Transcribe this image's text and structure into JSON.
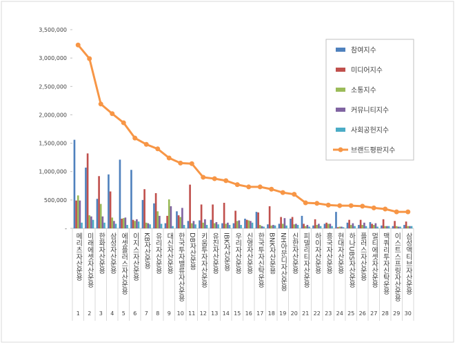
{
  "chart_data": {
    "type": "bar",
    "categories": [
      "메리츠자산운용",
      "미래에셋자산운용",
      "한화자산운용",
      "삼성자산운용",
      "에셋플러스자산운용",
      "이지스자산운용",
      "KB자산운용",
      "유리자산운용",
      "대신자산운용",
      "한국투자밸류자산운용",
      "DB자산운용",
      "키움투자자산운용",
      "유진자산운용",
      "IBK자산운용",
      "우리자산운용",
      "신영자산운용",
      "한국투자신탁운용",
      "BNK자산운용",
      "NH아문디자산운용",
      "신한자산운용",
      "피델리티자산운용",
      "하이자산운용",
      "흥국자산운용",
      "현대자산운용",
      "하나UBS자산운용",
      "플러스자산운용",
      "멀티에셋자산운용",
      "맥쿼리투자신탁운용",
      "이스트스프링자산운용",
      "삼성액티브자산운용"
    ],
    "ranks": [
      1,
      2,
      3,
      4,
      5,
      6,
      7,
      8,
      9,
      10,
      11,
      12,
      13,
      14,
      15,
      16,
      17,
      18,
      19,
      20,
      21,
      22,
      23,
      24,
      25,
      26,
      27,
      28,
      29,
      30
    ],
    "series": [
      {
        "name": "참여지수",
        "color": "#4f81bd",
        "values": [
          1560000,
          1070000,
          520000,
          950000,
          1210000,
          1030000,
          500000,
          440000,
          90000,
          300000,
          130000,
          140000,
          150000,
          90000,
          90000,
          170000,
          290000,
          70000,
          80000,
          170000,
          220000,
          50000,
          80000,
          290000,
          100000,
          60000,
          110000,
          50000,
          40000,
          60000
        ]
      },
      {
        "name": "미디어지수",
        "color": "#c0504d",
        "values": [
          490000,
          1320000,
          920000,
          650000,
          170000,
          150000,
          690000,
          620000,
          220000,
          230000,
          770000,
          420000,
          420000,
          450000,
          310000,
          150000,
          280000,
          390000,
          200000,
          200000,
          80000,
          160000,
          100000,
          20000,
          150000,
          150000,
          80000,
          160000,
          130000,
          120000
        ]
      },
      {
        "name": "소통지수",
        "color": "#9bbb59",
        "values": [
          580000,
          230000,
          430000,
          190000,
          180000,
          130000,
          100000,
          300000,
          510000,
          200000,
          90000,
          100000,
          90000,
          80000,
          130000,
          140000,
          60000,
          50000,
          80000,
          70000,
          40000,
          60000,
          80000,
          30000,
          60000,
          60000,
          60000,
          40000,
          40000,
          40000
        ]
      },
      {
        "name": "커뮤니티지수",
        "color": "#8064a2",
        "values": [
          490000,
          210000,
          210000,
          130000,
          190000,
          160000,
          90000,
          220000,
          390000,
          360000,
          130000,
          160000,
          110000,
          100000,
          140000,
          130000,
          40000,
          60000,
          180000,
          80000,
          60000,
          80000,
          80000,
          30000,
          90000,
          100000,
          90000,
          40000,
          30000,
          40000
        ]
      },
      {
        "name": "사회공헌지수",
        "color": "#4bacc6",
        "values": [
          100000,
          150000,
          100000,
          80000,
          60000,
          120000,
          70000,
          80000,
          40000,
          60000,
          70000,
          60000,
          70000,
          60000,
          60000,
          100000,
          30000,
          50000,
          50000,
          60000,
          30000,
          40000,
          40000,
          20000,
          40000,
          40000,
          30000,
          40000,
          30000,
          40000
        ]
      },
      {
        "name": "브랜드평판지수",
        "color": "#f79646",
        "type": "line",
        "values": [
          3230000,
          2990000,
          2190000,
          2020000,
          1860000,
          1590000,
          1480000,
          1400000,
          1240000,
          1150000,
          1140000,
          900000,
          875000,
          840000,
          770000,
          730000,
          730000,
          690000,
          630000,
          600000,
          450000,
          440000,
          410000,
          400000,
          400000,
          390000,
          360000,
          340000,
          290000,
          290000
        ]
      }
    ],
    "ylim": [
      0,
      3500000
    ],
    "yticks": [
      {
        "value": 0,
        "label": "-"
      },
      {
        "value": 500000,
        "label": "500,000"
      },
      {
        "value": 1000000,
        "label": "1,000,000"
      },
      {
        "value": 1500000,
        "label": "1,500,000"
      },
      {
        "value": 2000000,
        "label": "2,000,000"
      },
      {
        "value": 2500000,
        "label": "2,500,000"
      },
      {
        "value": 3000000,
        "label": "3,000,000"
      },
      {
        "value": 3500000,
        "label": "3,500,000"
      }
    ],
    "grid": false,
    "legend": "upper right"
  }
}
